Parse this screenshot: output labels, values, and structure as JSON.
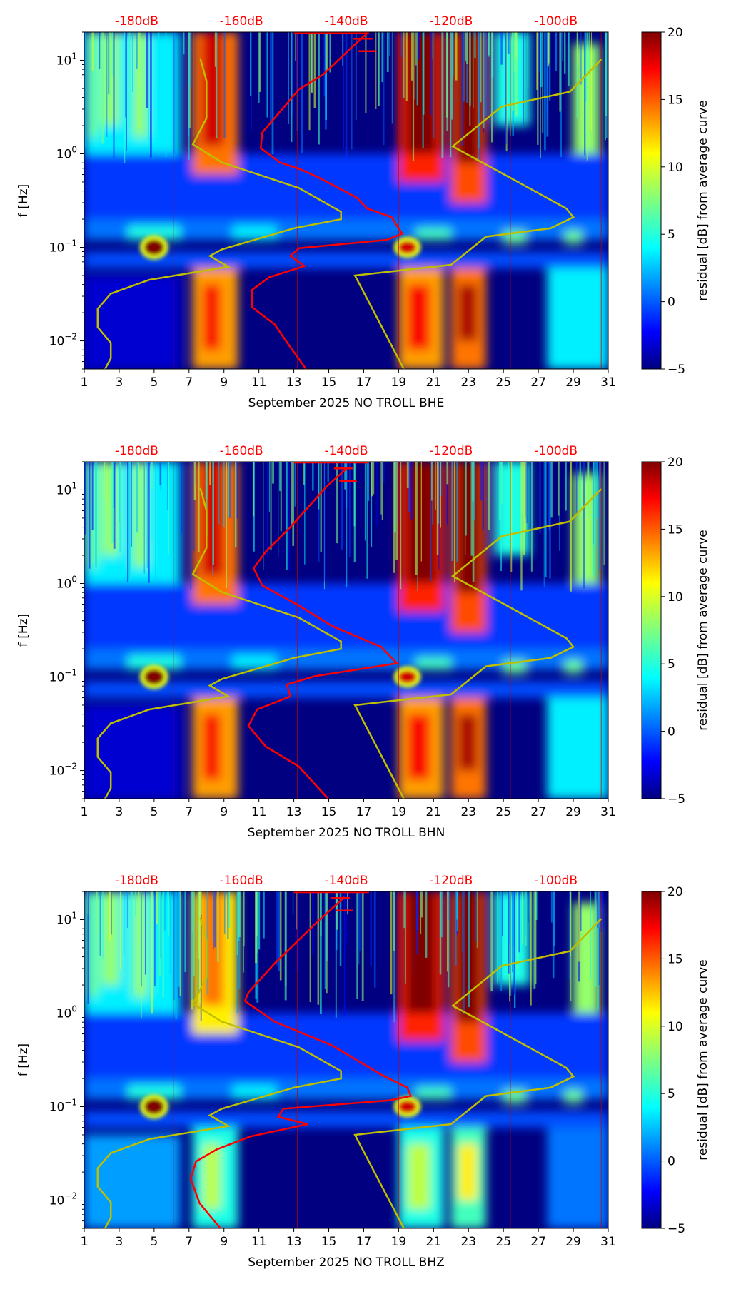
{
  "chart_data": [
    {
      "type": "heatmap",
      "xlabel": "September 2025 NO TROLL  BHE",
      "ylabel": "f [Hz]",
      "colorbar_label": "residual [dB] from average curve",
      "xlim": [
        1,
        31
      ],
      "ylim": [
        0.005,
        20
      ],
      "yscale": "log",
      "clim": [
        -5,
        20
      ],
      "colormap": "jet",
      "xticks": [
        "1",
        "3",
        "5",
        "7",
        "9",
        "11",
        "13",
        "15",
        "17",
        "19",
        "21",
        "23",
        "25",
        "27",
        "29",
        "31"
      ],
      "yticks": [
        {
          "value": 10,
          "base": "10",
          "exp": "1"
        },
        {
          "value": 1,
          "base": "10",
          "exp": "0"
        },
        {
          "value": 0.1,
          "base": "10",
          "exp": "−1"
        },
        {
          "value": 0.01,
          "base": "10",
          "exp": "−2"
        }
      ],
      "cticks": [
        "−5",
        "0",
        "5",
        "10",
        "15",
        "20"
      ],
      "top_labels": [
        {
          "x": 4,
          "text": "-180dB"
        },
        {
          "x": 10,
          "text": "-160dB"
        },
        {
          "x": 16,
          "text": "-140dB"
        },
        {
          "x": 22,
          "text": "-120dB"
        },
        {
          "x": 28,
          "text": "-100dB"
        }
      ],
      "low_band_level": 13,
      "red_curve": [
        [
          17.2,
          19.5
        ],
        [
          16.1,
          12.6
        ],
        [
          14.7,
          7.1
        ],
        [
          13.3,
          4.9
        ],
        [
          12.3,
          2.95
        ],
        [
          11.2,
          1.7
        ],
        [
          11.1,
          1.15
        ],
        [
          12.2,
          0.81
        ],
        [
          13.4,
          0.68
        ],
        [
          14.4,
          0.56
        ],
        [
          16.6,
          0.34
        ],
        [
          17.2,
          0.26
        ],
        [
          18.6,
          0.21
        ],
        [
          19.2,
          0.14
        ],
        [
          18.3,
          0.12
        ],
        [
          13.3,
          0.098
        ],
        [
          12.8,
          0.081
        ],
        [
          13.6,
          0.063
        ],
        [
          11.6,
          0.048
        ],
        [
          10.6,
          0.035
        ],
        [
          10.6,
          0.023
        ],
        [
          11.9,
          0.015
        ],
        [
          12.7,
          0.0091
        ],
        [
          13.7,
          0.005
        ]
      ],
      "yellow_curve_left": [
        [
          7.64,
          10.5
        ],
        [
          8.0,
          6.0
        ],
        [
          8.0,
          2.4
        ],
        [
          7.22,
          1.26
        ],
        [
          8.88,
          0.81
        ],
        [
          13.3,
          0.43
        ],
        [
          15.7,
          0.24
        ],
        [
          15.7,
          0.2
        ],
        [
          13.0,
          0.16
        ],
        [
          8.88,
          0.095
        ],
        [
          8.19,
          0.081
        ],
        [
          9.24,
          0.062
        ],
        [
          4.73,
          0.045
        ],
        [
          2.52,
          0.032
        ],
        [
          1.77,
          0.022
        ],
        [
          1.77,
          0.014
        ],
        [
          2.52,
          0.0095
        ],
        [
          2.52,
          0.0065
        ],
        [
          2.19,
          0.005
        ]
      ],
      "yellow_curve_right": [
        [
          30.6,
          10.2
        ],
        [
          28.8,
          4.6
        ],
        [
          24.9,
          3.2
        ],
        [
          22.1,
          1.2
        ],
        [
          25.2,
          0.58
        ],
        [
          28.6,
          0.26
        ],
        [
          29.0,
          0.21
        ],
        [
          27.7,
          0.16
        ],
        [
          24.0,
          0.13
        ],
        [
          22.0,
          0.065
        ],
        [
          16.5,
          0.05
        ],
        [
          19.3,
          0.005
        ]
      ]
    },
    {
      "type": "heatmap",
      "xlabel": "September 2025 NO TROLL  BHN",
      "ylabel": "f [Hz]",
      "colorbar_label": "residual [dB] from average curve",
      "xlim": [
        1,
        31
      ],
      "ylim": [
        0.005,
        20
      ],
      "yscale": "log",
      "clim": [
        -5,
        20
      ],
      "colormap": "jet",
      "xticks": [
        "1",
        "3",
        "5",
        "7",
        "9",
        "11",
        "13",
        "15",
        "17",
        "19",
        "21",
        "23",
        "25",
        "27",
        "29",
        "31"
      ],
      "yticks": [
        {
          "value": 10,
          "base": "10",
          "exp": "1"
        },
        {
          "value": 1,
          "base": "10",
          "exp": "0"
        },
        {
          "value": 0.1,
          "base": "10",
          "exp": "−1"
        },
        {
          "value": 0.01,
          "base": "10",
          "exp": "−2"
        }
      ],
      "cticks": [
        "−5",
        "0",
        "5",
        "10",
        "15",
        "20"
      ],
      "top_labels": [
        {
          "x": 4,
          "text": "-180dB"
        },
        {
          "x": 10,
          "text": "-160dB"
        },
        {
          "x": 16,
          "text": "-140dB"
        },
        {
          "x": 22,
          "text": "-120dB"
        },
        {
          "x": 28,
          "text": "-100dB"
        }
      ],
      "low_band_level": 13,
      "red_curve": [
        [
          16.1,
          17.4
        ],
        [
          14.9,
          11
        ],
        [
          12.8,
          4.0
        ],
        [
          11.4,
          2.2
        ],
        [
          10.7,
          1.45
        ],
        [
          11.2,
          0.95
        ],
        [
          13.3,
          0.58
        ],
        [
          15.2,
          0.35
        ],
        [
          18.0,
          0.21
        ],
        [
          18.9,
          0.14
        ],
        [
          14.2,
          0.102
        ],
        [
          12.6,
          0.083
        ],
        [
          12.8,
          0.062
        ],
        [
          10.9,
          0.045
        ],
        [
          10.4,
          0.03
        ],
        [
          11.4,
          0.018
        ],
        [
          13.3,
          0.011
        ],
        [
          14.96,
          0.005
        ]
      ],
      "yellow_curve_left": [
        [
          7.64,
          10.5
        ],
        [
          8.0,
          6.0
        ],
        [
          8.0,
          2.4
        ],
        [
          7.22,
          1.26
        ],
        [
          8.88,
          0.81
        ],
        [
          13.3,
          0.43
        ],
        [
          15.7,
          0.24
        ],
        [
          15.7,
          0.2
        ],
        [
          13.0,
          0.16
        ],
        [
          8.88,
          0.095
        ],
        [
          8.19,
          0.081
        ],
        [
          9.24,
          0.062
        ],
        [
          4.73,
          0.045
        ],
        [
          2.52,
          0.032
        ],
        [
          1.77,
          0.022
        ],
        [
          1.77,
          0.014
        ],
        [
          2.52,
          0.0095
        ],
        [
          2.52,
          0.0065
        ],
        [
          2.19,
          0.005
        ]
      ],
      "yellow_curve_right": [
        [
          30.6,
          10.2
        ],
        [
          28.8,
          4.6
        ],
        [
          24.9,
          3.2
        ],
        [
          22.1,
          1.2
        ],
        [
          25.2,
          0.58
        ],
        [
          28.6,
          0.26
        ],
        [
          29.0,
          0.21
        ],
        [
          27.7,
          0.16
        ],
        [
          24.0,
          0.13
        ],
        [
          22.0,
          0.065
        ],
        [
          16.5,
          0.05
        ],
        [
          19.3,
          0.005
        ]
      ]
    },
    {
      "type": "heatmap",
      "xlabel": "September 2025 NO TROLL  BHZ",
      "ylabel": "f [Hz]",
      "colorbar_label": "residual [dB] from average curve",
      "xlim": [
        1,
        31
      ],
      "ylim": [
        0.005,
        20
      ],
      "yscale": "log",
      "clim": [
        -5,
        20
      ],
      "colormap": "jet",
      "xticks": [
        "1",
        "3",
        "5",
        "7",
        "9",
        "11",
        "13",
        "15",
        "17",
        "19",
        "21",
        "23",
        "25",
        "27",
        "29",
        "31"
      ],
      "yticks": [
        {
          "value": 10,
          "base": "10",
          "exp": "1"
        },
        {
          "value": 1,
          "base": "10",
          "exp": "0"
        },
        {
          "value": 0.1,
          "base": "10",
          "exp": "−1"
        },
        {
          "value": 0.01,
          "base": "10",
          "exp": "−2"
        }
      ],
      "cticks": [
        "−5",
        "0",
        "5",
        "10",
        "15",
        "20"
      ],
      "top_labels": [
        {
          "x": 4,
          "text": "-180dB"
        },
        {
          "x": 10,
          "text": "-160dB"
        },
        {
          "x": 16,
          "text": "-140dB"
        },
        {
          "x": 22,
          "text": "-120dB"
        },
        {
          "x": 28,
          "text": "-100dB"
        }
      ],
      "low_band_level": 5,
      "red_curve": [
        [
          15.9,
          17.4
        ],
        [
          14.3,
          9.3
        ],
        [
          11.9,
          3.4
        ],
        [
          10.4,
          1.66
        ],
        [
          10.2,
          1.35
        ],
        [
          11.9,
          0.81
        ],
        [
          15.2,
          0.45
        ],
        [
          18.0,
          0.22
        ],
        [
          19.5,
          0.16
        ],
        [
          19.7,
          0.13
        ],
        [
          18.5,
          0.117
        ],
        [
          12.4,
          0.095
        ],
        [
          12.1,
          0.078
        ],
        [
          13.8,
          0.065
        ],
        [
          10.5,
          0.048
        ],
        [
          8.6,
          0.035
        ],
        [
          7.4,
          0.026
        ],
        [
          7.1,
          0.017
        ],
        [
          7.6,
          0.0093
        ],
        [
          8.8,
          0.005
        ]
      ],
      "yellow_curve_left": [
        [
          7.64,
          10.5
        ],
        [
          8.0,
          6.0
        ],
        [
          8.0,
          2.4
        ],
        [
          7.22,
          1.26
        ],
        [
          8.88,
          0.81
        ],
        [
          13.3,
          0.43
        ],
        [
          15.7,
          0.24
        ],
        [
          15.7,
          0.2
        ],
        [
          13.0,
          0.16
        ],
        [
          8.88,
          0.095
        ],
        [
          8.19,
          0.081
        ],
        [
          9.24,
          0.062
        ],
        [
          4.73,
          0.045
        ],
        [
          2.52,
          0.032
        ],
        [
          1.77,
          0.022
        ],
        [
          1.77,
          0.014
        ],
        [
          2.52,
          0.0095
        ],
        [
          2.52,
          0.0065
        ],
        [
          2.19,
          0.005
        ]
      ],
      "yellow_curve_right": [
        [
          30.6,
          10.2
        ],
        [
          28.8,
          4.6
        ],
        [
          24.9,
          3.2
        ],
        [
          22.1,
          1.2
        ],
        [
          25.2,
          0.58
        ],
        [
          28.6,
          0.26
        ],
        [
          29.0,
          0.21
        ],
        [
          27.7,
          0.16
        ],
        [
          24.0,
          0.13
        ],
        [
          22.0,
          0.065
        ],
        [
          16.5,
          0.05
        ],
        [
          19.3,
          0.005
        ]
      ]
    }
  ],
  "colors": {
    "red_curve": "#ff0000",
    "yellow_curve": "#bfbf00",
    "top_labels": "#ff0000",
    "background": "#00007f"
  }
}
